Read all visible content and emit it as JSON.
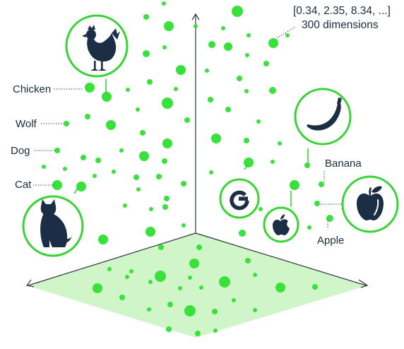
{
  "colors": {
    "dot": "#38e23a",
    "ring": "#38d335",
    "floor": "#cff5c9",
    "icon": "#1c2e45",
    "text": "#1c2b3a",
    "axis": "#2b3540"
  },
  "vector_label": "[0.34, 2.35, 8.34, ...]",
  "dimensions_label": "300 dimensions",
  "labels": {
    "chicken": "Chicken",
    "wolf": "Wolf",
    "dog": "Dog",
    "cat": "Cat",
    "banana": "Banana",
    "apple": "Apple"
  },
  "icons": {
    "chicken": "chicken-icon",
    "cat": "cat-icon",
    "banana": "banana-icon",
    "google": "google-logo-icon",
    "apple_logo": "apple-logo-icon",
    "apple_fruit": "apple-fruit-icon"
  }
}
